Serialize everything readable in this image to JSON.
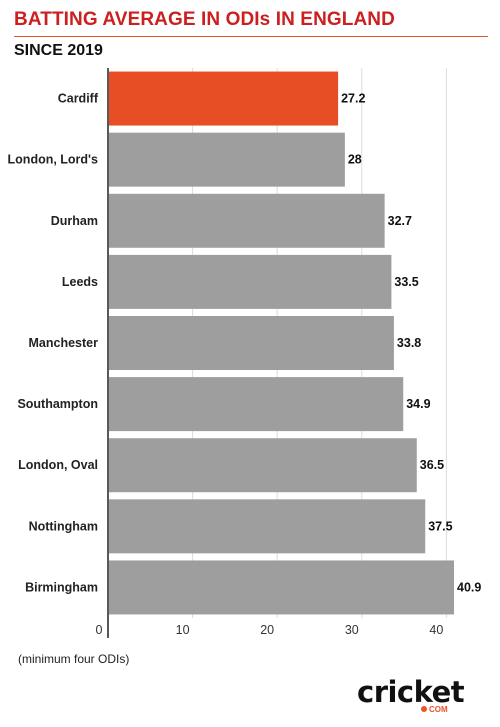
{
  "title": "BATTING AVERAGE IN ODIs IN ENGLAND",
  "subtitle": "SINCE 2019",
  "footnote": "(minimum four ODIs)",
  "logo": {
    "word": "cricket",
    "suffix": "COM"
  },
  "colors": {
    "highlight": "#e84e26",
    "bar": "#9e9e9e",
    "title": "#cc1f1f"
  },
  "chart_data": {
    "type": "bar",
    "orientation": "horizontal",
    "categories": [
      "Cardiff",
      "London, Lord's",
      "Durham",
      "Leeds",
      "Manchester",
      "Southampton",
      "London, Oval",
      "Nottingham",
      "Birmingham"
    ],
    "values": [
      27.2,
      28,
      32.7,
      33.5,
      33.8,
      34.9,
      36.5,
      37.5,
      40.9
    ],
    "value_labels": [
      "27.2",
      "28",
      "32.7",
      "33.5",
      "33.8",
      "34.9",
      "36.5",
      "37.5",
      "40.9"
    ],
    "highlight": "Cardiff",
    "xlim": [
      0,
      40.9
    ],
    "xticks": [
      0,
      10,
      20,
      30,
      40
    ],
    "xtick_labels": [
      "0",
      "10",
      "20",
      "30",
      "40"
    ],
    "grid": true,
    "title": "BATTING AVERAGE IN ODIs IN ENGLAND",
    "subtitle": "SINCE 2019",
    "xlabel": "",
    "ylabel": ""
  }
}
